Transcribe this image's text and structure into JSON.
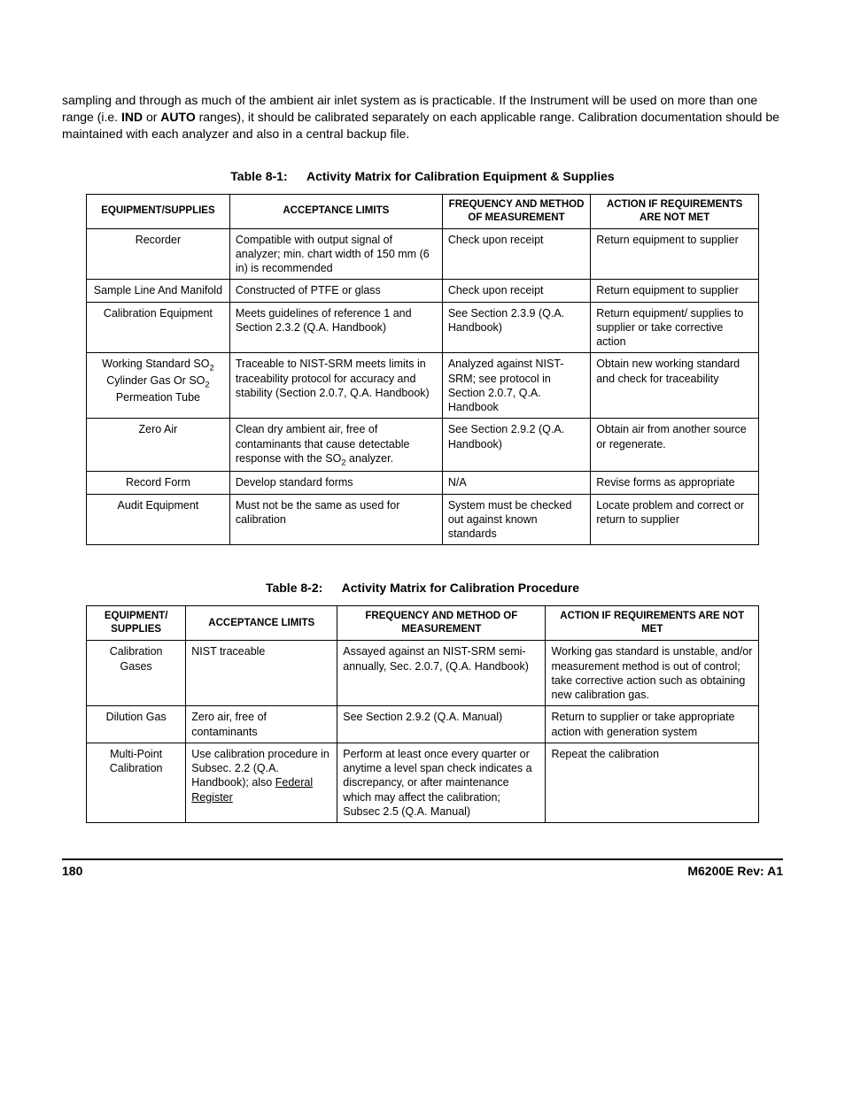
{
  "intro": {
    "pre": "sampling and through as much of the ambient air inlet system as is practicable. If the Instrument will be used on more than one range (i.e. ",
    "b1": "IND",
    "mid1": "  or  ",
    "b2": "AUTO",
    "post": " ranges), it should be calibrated separately on each applicable range. Calibration documentation should be maintained with each analyzer and also in a central backup file."
  },
  "table1": {
    "caption_num": "Table 8-1:",
    "caption_title": "Activity Matrix for Calibration Equipment & Supplies",
    "headers": {
      "h1": "EQUIPMENT/SUPPLIES",
      "h2": "ACCEPTANCE LIMITS",
      "h3": "FREQUENCY AND METHOD OF MEASUREMENT",
      "h4": "ACTION IF REQUIREMENTS ARE NOT MET"
    },
    "rows": [
      {
        "c1": "Recorder",
        "c2": "Compatible with output signal of analyzer; min. chart width of 150 mm (6 in) is recommended",
        "c3": "Check upon receipt",
        "c4": "Return equipment to supplier"
      },
      {
        "c1": "Sample Line And Manifold",
        "c2": "Constructed of PTFE or glass",
        "c3": "Check upon receipt",
        "c4": "Return equipment to supplier"
      },
      {
        "c1": "Calibration Equipment",
        "c2": "Meets guidelines of reference 1 and Section 2.3.2 (Q.A. Handbook)",
        "c3": "See Section 2.3.9 (Q.A. Handbook)",
        "c4": "Return equipment/ supplies to supplier or take corrective action"
      },
      {
        "c1_html": true,
        "c1_pre": "Working Standard SO",
        "c1_sub1": "2",
        "c1_mid": " Cylinder Gas Or SO",
        "c1_sub2": "2",
        "c1_post": " Permeation Tube",
        "c2": "Traceable to NIST-SRM meets limits in traceability protocol for accuracy and stability (Section 2.0.7, Q.A. Handbook)",
        "c3": "Analyzed against NIST-SRM; see protocol in Section 2.0.7, Q.A. Handbook",
        "c4": "Obtain new working standard and check for traceability"
      },
      {
        "c1": "Zero Air",
        "c2_html": true,
        "c2_pre": "Clean dry ambient air, free of contaminants that cause detectable response with the SO",
        "c2_sub": "2",
        "c2_post": " analyzer.",
        "c3": "See Section 2.9.2 (Q.A. Handbook)",
        "c4": "Obtain air from another source or regenerate."
      },
      {
        "c1": "Record Form",
        "c2": "Develop standard forms",
        "c3": "N/A",
        "c4": "Revise forms as appropriate"
      },
      {
        "c1": "Audit Equipment",
        "c2": "Must not be the same as used for calibration",
        "c3": "System must be checked out against known standards",
        "c4": "Locate problem and correct or return to supplier"
      }
    ]
  },
  "table2": {
    "caption_num": "Table 8-2:",
    "caption_title": "Activity Matrix for Calibration Procedure",
    "headers": {
      "h1": "EQUIPMENT/ SUPPLIES",
      "h2": "ACCEPTANCE LIMITS",
      "h3": "FREQUENCY AND METHOD OF MEASUREMENT",
      "h4": "ACTION IF REQUIREMENTS ARE NOT MET"
    },
    "rows": [
      {
        "c1": "Calibration Gases",
        "c2": "NIST traceable",
        "c3": "Assayed against an NIST-SRM semi-annually, Sec. 2.0.7, (Q.A. Handbook)",
        "c4": "Working gas standard is unstable, and/or measurement method is out of control; take corrective action such as obtaining new calibration gas."
      },
      {
        "c1": "Dilution Gas",
        "c2": "Zero air, free of contaminants",
        "c3": "See Section 2.9.2 (Q.A. Manual)",
        "c4": "Return to supplier or take appropriate action with generation system"
      },
      {
        "c1": "Multi-Point Calibration",
        "c2_html": true,
        "c2_pre": "Use calibration procedure in Subsec. 2.2 (Q.A. Handbook); also ",
        "c2_under": "Federal Register",
        "c3": "Perform at least once every quarter or anytime a level span check indicates a discrepancy, or after maintenance which may affect the calibration; Subsec 2.5 (Q.A. Manual)",
        "c4": "Repeat the calibration"
      }
    ]
  },
  "footer": {
    "page": "180",
    "rev": "M6200E Rev: A1"
  }
}
